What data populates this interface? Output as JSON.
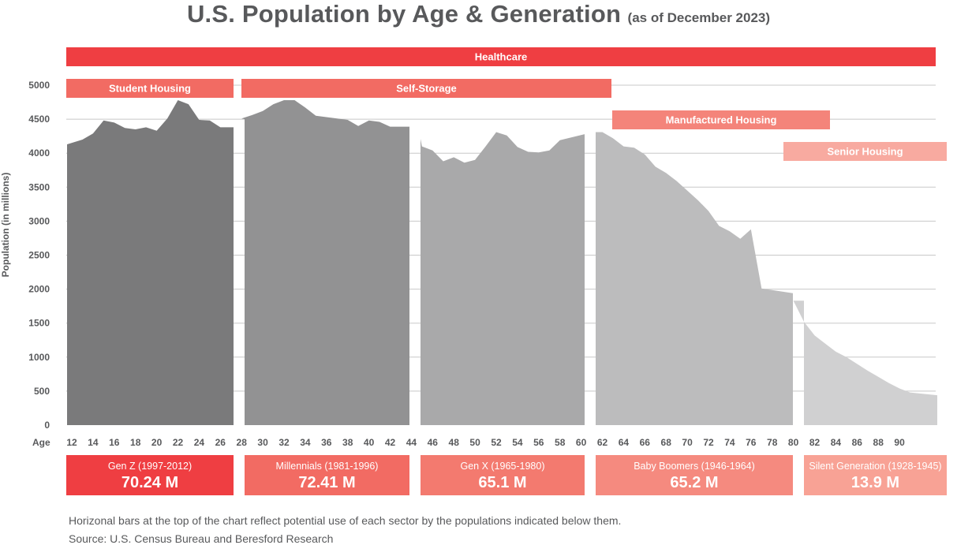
{
  "title": "U.S. Population by Age & Generation",
  "subtitle": "(as of December 2023)",
  "footnote": "Horizonal bars at the top of the chart reflect potential use of each sector by the populations indicated below them.",
  "source": "Source: U.S. Census Bureau and Beresford Research",
  "colors": {
    "gen1": "#7a7a7b",
    "gen2": "#929293",
    "gen3": "#a9a9aa",
    "gen4": "#bcbcbd",
    "gen5": "#d0d0d1",
    "healthcare": "#ef3e42",
    "student": "#f26b63",
    "storage": "#f26b63",
    "manufactured": "#f4847a",
    "senior": "#f8aaa0",
    "genz_box": "#ef3e42",
    "mill_box": "#f26b63",
    "genx_box": "#f37a6f",
    "boom_box": "#f58a7f",
    "silent_box": "#f8a295",
    "axis_text": "#58595b",
    "grid": "#c8c8c8"
  },
  "sectors": [
    {
      "label": "Healthcare",
      "ages": [
        12,
        92
      ],
      "row": 0,
      "color": "healthcare"
    },
    {
      "label": "Student Housing",
      "ages": [
        12,
        27
      ],
      "row": 1,
      "color": "student"
    },
    {
      "label": "Self-Storage",
      "ages": [
        28,
        61
      ],
      "row": 1,
      "color": "storage"
    },
    {
      "label": "Manufactured Housing",
      "ages": [
        61,
        82
      ],
      "row": 2,
      "color": "manufactured"
    },
    {
      "label": "Senior Housing",
      "ages": [
        78,
        93
      ],
      "row": 3,
      "color": "senior"
    }
  ],
  "chart_data": {
    "type": "area",
    "title": "U.S. Population by Age & Generation",
    "subtitle": "(as of December 2023)",
    "xlabel": "Age",
    "ylabel": "Population (in millions)",
    "ylim": [
      0,
      5000
    ],
    "yticks": [
      0,
      500,
      1000,
      1500,
      2000,
      2500,
      3000,
      3500,
      4000,
      4500,
      5000
    ],
    "xticks": [
      12,
      14,
      16,
      18,
      20,
      22,
      24,
      26,
      28,
      30,
      32,
      34,
      36,
      38,
      40,
      42,
      44,
      46,
      48,
      50,
      52,
      54,
      56,
      58,
      60,
      62,
      64,
      66,
      68,
      70,
      72,
      74,
      76,
      78,
      80,
      82,
      84,
      86,
      88,
      90
    ],
    "grid": true,
    "series": [
      {
        "name": "Gen Z (1997-2012)",
        "total": "70.24 M",
        "color": "gen1",
        "box": "genz_box",
        "x": [
          12,
          13,
          14,
          15,
          16,
          17,
          18,
          19,
          20,
          21,
          22,
          23,
          24,
          25,
          26,
          27
        ],
        "values": [
          4130,
          4200,
          4290,
          4480,
          4450,
          4370,
          4350,
          4380,
          4330,
          4510,
          4780,
          4720,
          4490,
          4480,
          4380,
          4380
        ]
      },
      {
        "name": "Millennials (1981-1996)",
        "total": "72.41 M",
        "color": "gen2",
        "box": "mill_box",
        "x": [
          27.5,
          28,
          29,
          30,
          31,
          32,
          33,
          34,
          35,
          36,
          37,
          38,
          39,
          40,
          41,
          42,
          43
        ],
        "values": [
          4500,
          4510,
          4560,
          4620,
          4720,
          4780,
          4780,
          4670,
          4550,
          4530,
          4510,
          4490,
          4400,
          4480,
          4460,
          4390,
          4390
        ]
      },
      {
        "name": "Gen X (1965-1980)",
        "total": "65.1 M",
        "color": "gen3",
        "box": "genx_box",
        "x": [
          44,
          45,
          46,
          47,
          48,
          49,
          50,
          51,
          52,
          53,
          54,
          55,
          56,
          57,
          58,
          59
        ],
        "values": [
          4210,
          4100,
          4040,
          3880,
          3940,
          3860,
          3900,
          4100,
          4310,
          4260,
          4090,
          4020,
          4010,
          4040,
          4190,
          4280
        ]
      },
      {
        "name": "Baby Boomers (1946-1964)",
        "total": "65.2 M",
        "color": "gen4",
        "box": "boom_box",
        "x": [
          60,
          61,
          62,
          63,
          64,
          65,
          66,
          67,
          68,
          69,
          70,
          71,
          72,
          73,
          74,
          75,
          76,
          77,
          78
        ],
        "values": [
          4310,
          4310,
          4310,
          4220,
          4100,
          4080,
          3980,
          3800,
          3710,
          3590,
          3450,
          3310,
          3150,
          2930,
          2850,
          2740,
          2880,
          2010,
          1940
        ]
      },
      {
        "name": "Silent Generation (1928-1945)",
        "total": "13.9 M",
        "color": "gen5",
        "box": "silent_box",
        "x": [
          79,
          80,
          81,
          82,
          83,
          84,
          85,
          86,
          87,
          88,
          89,
          90,
          91,
          92
        ],
        "values": [
          1830,
          1830,
          1520,
          1320,
          1200,
          1080,
          1000,
          900,
          800,
          710,
          620,
          540,
          480,
          440
        ]
      }
    ]
  }
}
